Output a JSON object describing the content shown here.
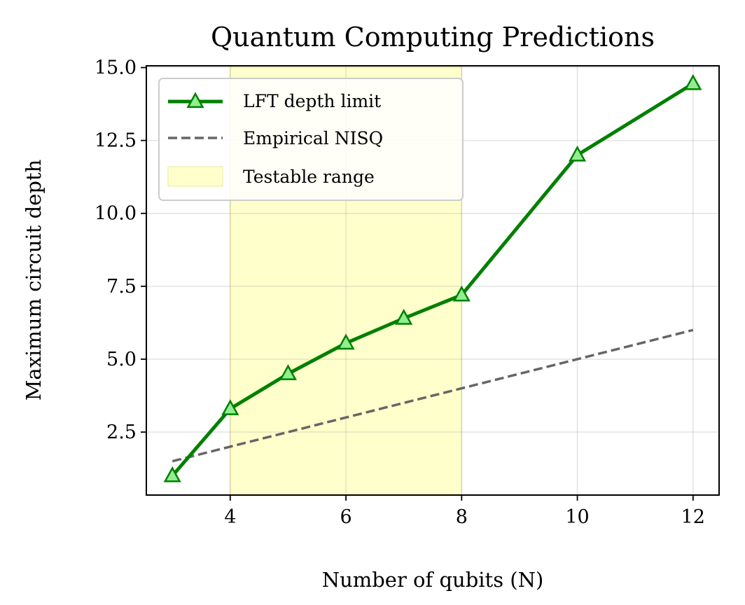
{
  "chart_data": {
    "type": "line",
    "title": "Quantum Computing Predictions",
    "xlabel": "Number of qubits (N)",
    "ylabel": "Maximum circuit depth",
    "xlim": [
      2.55,
      12.45
    ],
    "ylim": [
      0.34,
      15.06
    ],
    "xticks": [
      4,
      6,
      8,
      10,
      12
    ],
    "yticks": [
      2.5,
      5.0,
      7.5,
      10.0,
      12.5,
      15.0
    ],
    "grid": true,
    "legend_position": "top-left",
    "series": [
      {
        "name": "LFT depth limit",
        "style": "solid",
        "marker": "triangle",
        "color": "#008000",
        "marker_fill": "#90ee90",
        "x": [
          3,
          4,
          5,
          6,
          7,
          8,
          10,
          12
        ],
        "y": [
          1.0,
          3.3,
          4.5,
          5.55,
          6.4,
          7.2,
          12.0,
          14.45
        ]
      },
      {
        "name": "Empirical NISQ",
        "style": "dashed",
        "color": "#666666",
        "x": [
          3,
          4,
          5,
          6,
          7,
          8,
          10,
          12
        ],
        "y": [
          1.5,
          2.0,
          2.5,
          3.0,
          3.5,
          4.0,
          5.0,
          6.0
        ]
      }
    ],
    "shaded_region": {
      "name": "Testable range",
      "x_start": 4,
      "x_end": 8,
      "color": "#ffffa0"
    }
  }
}
